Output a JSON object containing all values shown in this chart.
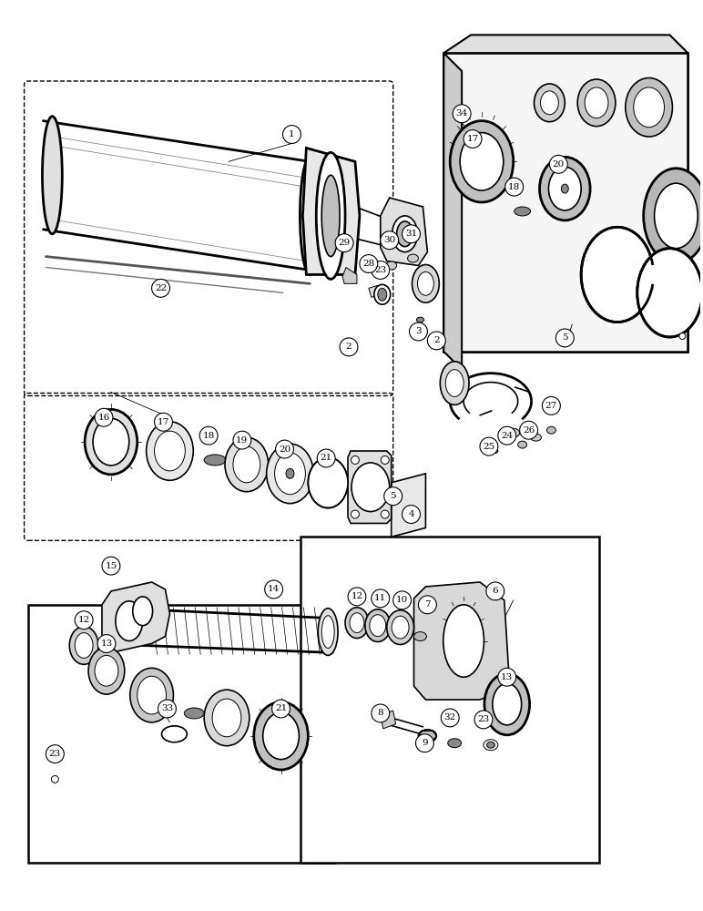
{
  "bg_color": "#ffffff",
  "fig_width": 7.72,
  "fig_height": 10.0,
  "dpi": 100,
  "lc": "#000000",
  "lw": 1.2,
  "tlw": 0.7,
  "thk": 2.0
}
